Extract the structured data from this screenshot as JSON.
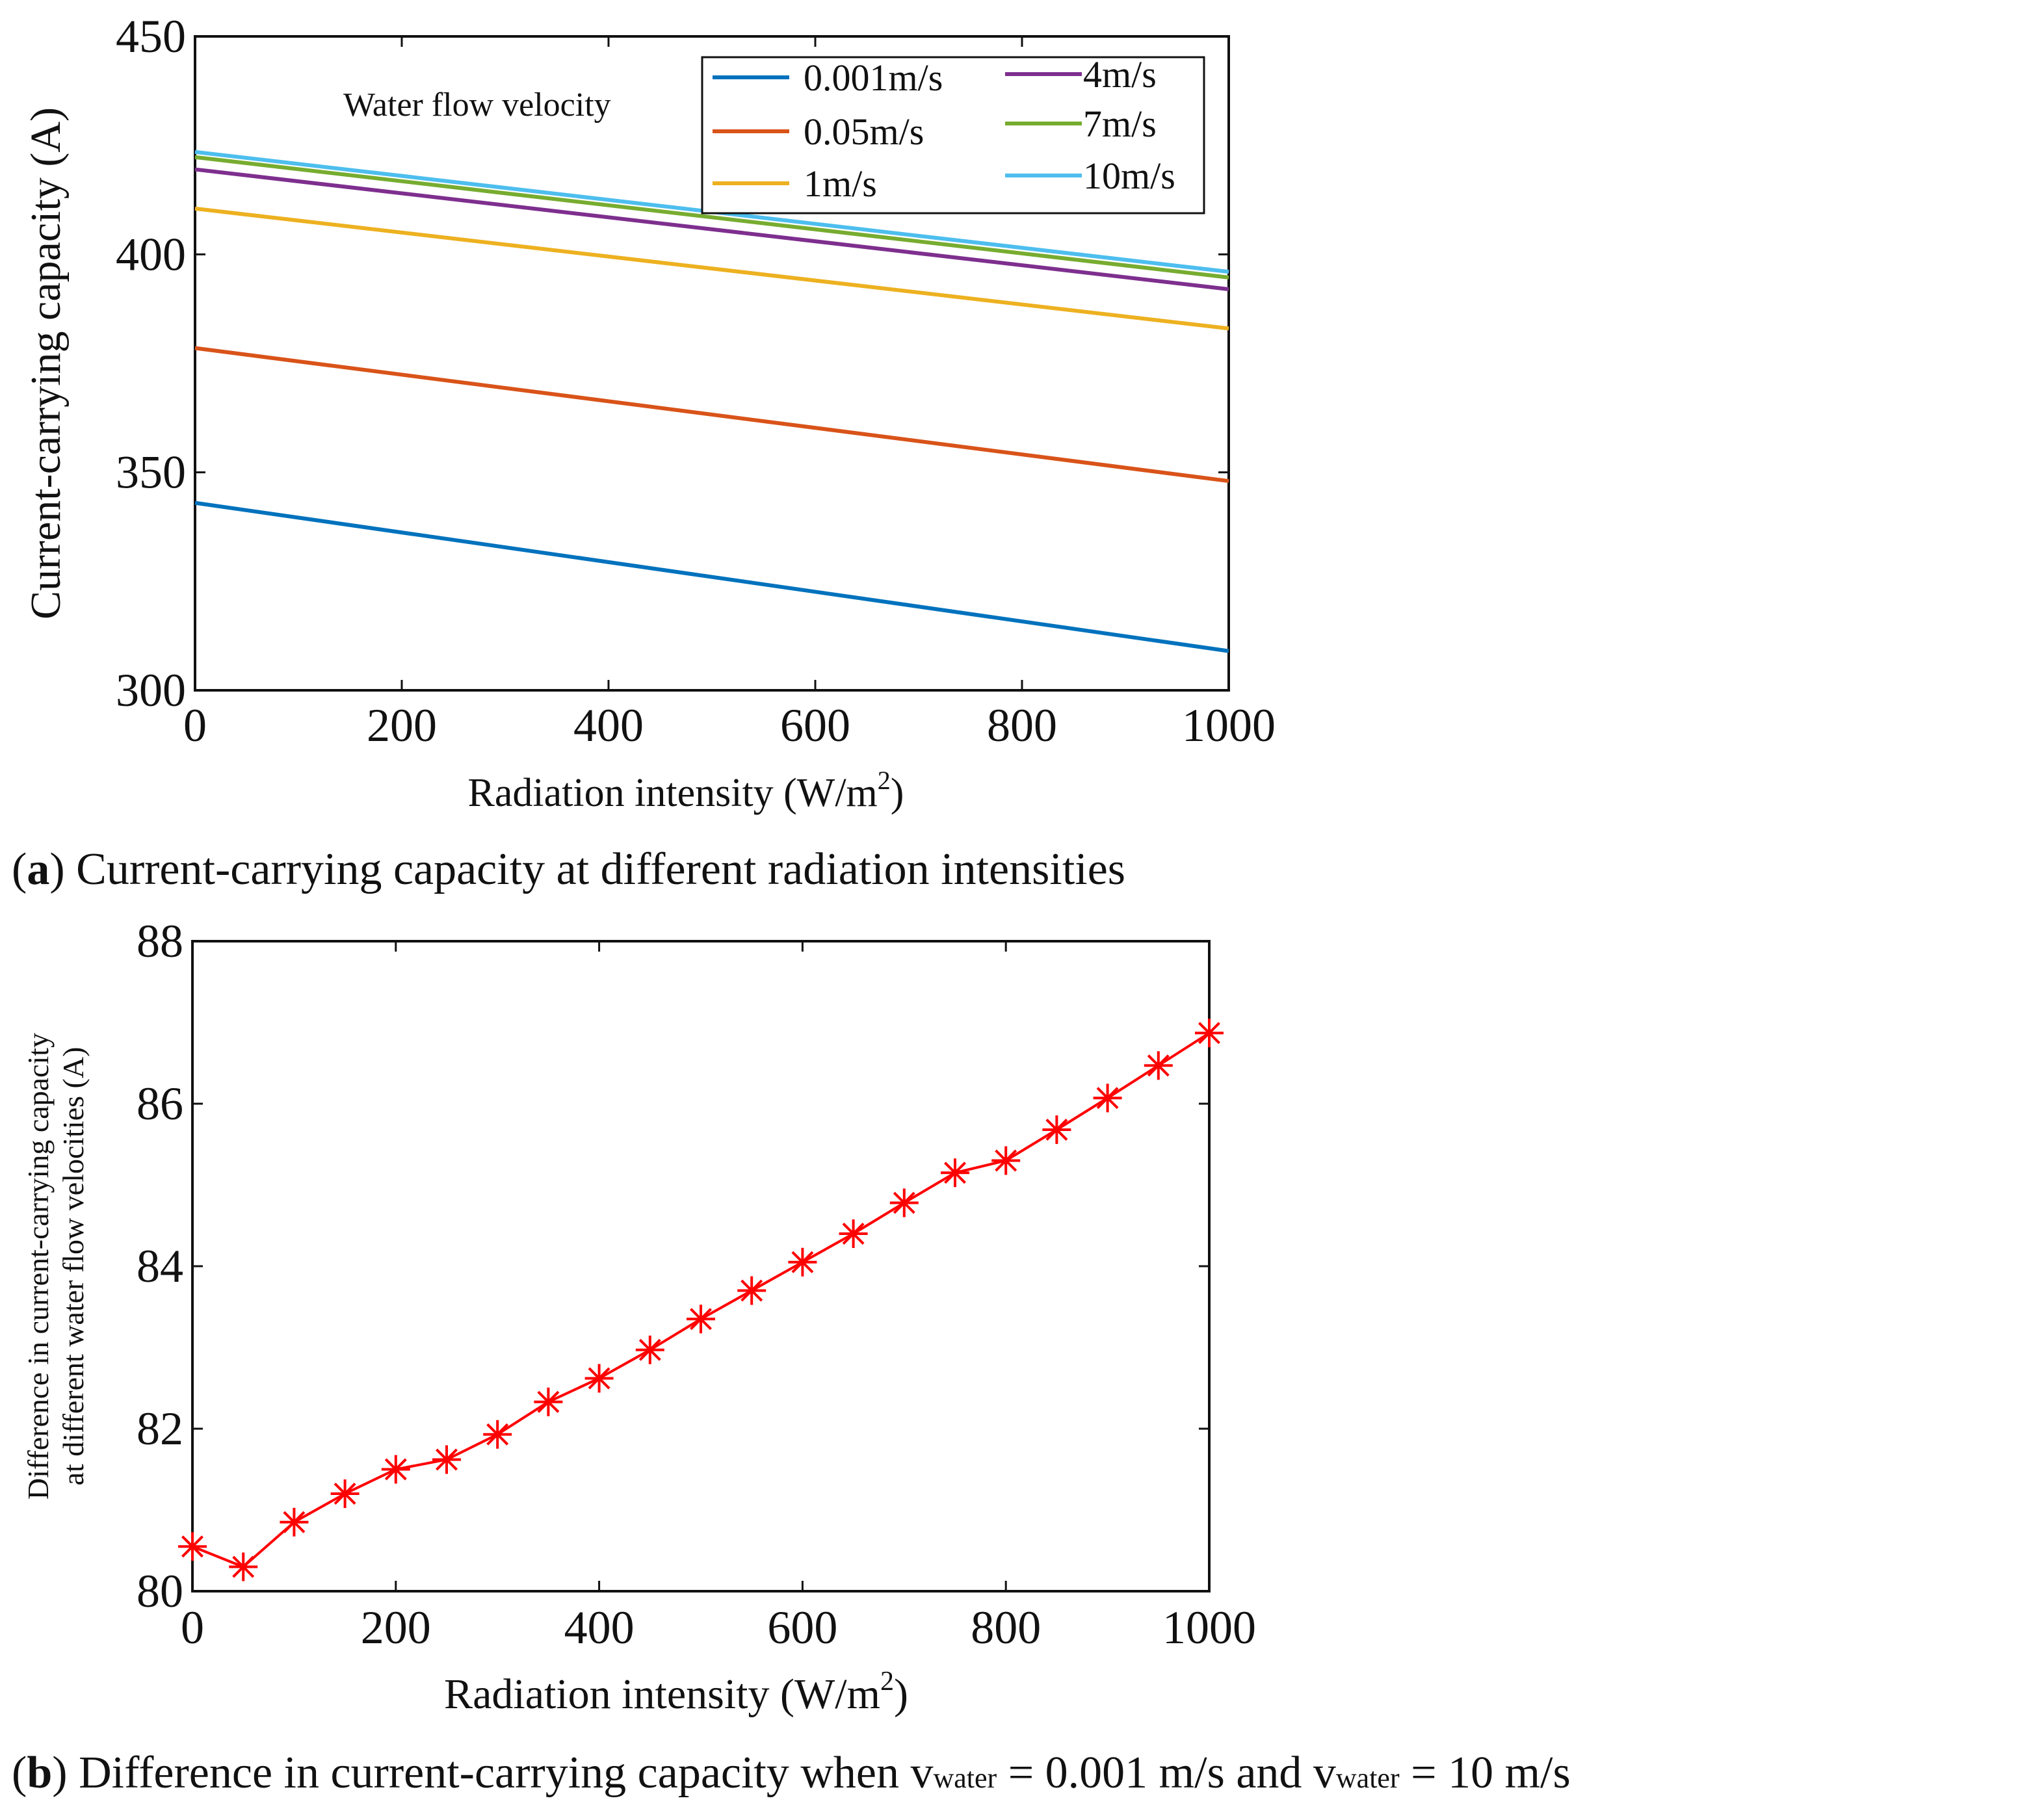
{
  "chart_data": [
    {
      "type": "line",
      "title": "",
      "xlabel": "Radiation intensity (W/m",
      "xlabel_sup": "2",
      "xlabel_end": ")",
      "ylabel": "Current-carrying capacity (A)",
      "xlim": [
        0,
        1000
      ],
      "ylim": [
        300,
        450
      ],
      "xticks": [
        0,
        200,
        400,
        600,
        800,
        1000
      ],
      "yticks": [
        300,
        350,
        400,
        450
      ],
      "legend_title": "Water flow velocity",
      "legend_position": "top-right",
      "x": [
        0,
        1000
      ],
      "series": [
        {
          "name": "0.001m/s",
          "color": "#0072BD",
          "values": [
            343,
            309
          ]
        },
        {
          "name": "0.05m/s",
          "color": "#D95319",
          "values": [
            378.5,
            348
          ]
        },
        {
          "name": "1m/s",
          "color": "#EDB120",
          "values": [
            410.5,
            383
          ]
        },
        {
          "name": "4m/s",
          "color": "#7E2F8E",
          "values": [
            419.5,
            392
          ]
        },
        {
          "name": "7m/s",
          "color": "#77AC30",
          "values": [
            422.3,
            394.7
          ]
        },
        {
          "name": "10m/s",
          "color": "#4DBEEE",
          "values": [
            423.5,
            396
          ]
        }
      ],
      "caption_label": "a",
      "caption": "Current-carrying capacity at different radiation intensities"
    },
    {
      "type": "line",
      "title": "",
      "xlabel": "Radiation intensity (W/m",
      "xlabel_sup": "2",
      "xlabel_end": ")",
      "ylabel_line1": "Difference in current-carrying capacity",
      "ylabel_line2": "at different water flow velocities (A)",
      "xlim": [
        0,
        1000
      ],
      "ylim": [
        80,
        88
      ],
      "xticks": [
        0,
        200,
        400,
        600,
        800,
        1000
      ],
      "yticks": [
        80,
        82,
        84,
        86,
        88
      ],
      "marker": "asterisk",
      "color": "#FF0000",
      "x": [
        0,
        50,
        100,
        150,
        200,
        250,
        300,
        350,
        400,
        450,
        500,
        550,
        600,
        650,
        700,
        750,
        800,
        850,
        900,
        950,
        1000
      ],
      "values": [
        80.55,
        80.3,
        80.85,
        81.2,
        81.5,
        81.62,
        81.93,
        82.33,
        82.62,
        82.97,
        83.35,
        83.7,
        84.05,
        84.4,
        84.78,
        85.15,
        85.3,
        85.68,
        86.07,
        86.47,
        86.87
      ],
      "caption_label": "b",
      "caption_pre": "Difference in current-carrying capacity when v",
      "caption_sub1": "water",
      "caption_mid": " = 0.001 m/s and v",
      "caption_sub2": "water",
      "caption_end": " = 10 m/s"
    }
  ]
}
